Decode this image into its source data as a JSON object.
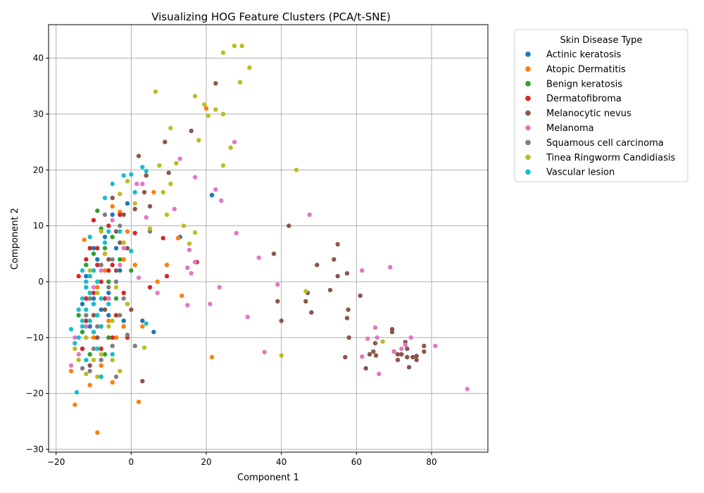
{
  "chart_data": {
    "type": "scatter",
    "title": "Visualizing HOG Feature Clusters (PCA/t-SNE)",
    "xlabel": "Component 1",
    "ylabel": "Component 2",
    "xlim": [
      -22,
      95
    ],
    "ylim": [
      -30.5,
      46
    ],
    "xticks": [
      -20,
      0,
      20,
      40,
      60,
      80
    ],
    "yticks": [
      -30,
      -20,
      -10,
      0,
      10,
      20,
      30,
      40
    ],
    "grid": true,
    "legend": {
      "title": "Skin Disease Type",
      "placement": "outside-right-top"
    },
    "series": [
      {
        "name": "Actinic keratosis",
        "color": "#1f77b4",
        "points": [
          [
            -12,
            1
          ],
          [
            -10,
            -3
          ],
          [
            -8,
            -5
          ],
          [
            -9,
            4
          ],
          [
            -6,
            -2
          ],
          [
            -7,
            8
          ],
          [
            -5,
            12
          ],
          [
            -3,
            2
          ],
          [
            -2,
            -7
          ],
          [
            -11,
            -8
          ],
          [
            -4,
            6
          ],
          [
            -13,
            -4
          ],
          [
            3,
            -7
          ],
          [
            6,
            -9
          ],
          [
            13,
            8
          ],
          [
            21.5,
            15.5
          ],
          [
            -1,
            14
          ],
          [
            -8,
            9
          ],
          [
            -10,
            6
          ],
          [
            -6,
            -6
          ]
        ]
      },
      {
        "name": "Atopic Dermatitis",
        "color": "#ff7f0e",
        "points": [
          [
            -12.5,
            7.5
          ],
          [
            -15,
            -22
          ],
          [
            -16,
            -16
          ],
          [
            -9,
            -27
          ],
          [
            -11,
            -18.5
          ],
          [
            -5,
            -18
          ],
          [
            2,
            -21.5
          ],
          [
            -8,
            -15
          ],
          [
            -2,
            -8
          ],
          [
            3,
            -8
          ],
          [
            1,
            3
          ],
          [
            7,
            0
          ],
          [
            9.5,
            3
          ],
          [
            13.5,
            -2.5
          ],
          [
            12.5,
            7.8
          ],
          [
            6,
            16
          ],
          [
            20,
            31
          ],
          [
            21.5,
            -13.5
          ],
          [
            -3,
            12.5
          ],
          [
            -5,
            13.5
          ],
          [
            -1,
            -4
          ],
          [
            -6,
            -7
          ],
          [
            -13,
            -12
          ],
          [
            -10,
            -10
          ],
          [
            -4,
            -10
          ],
          [
            -7,
            2
          ],
          [
            -9,
            -1
          ],
          [
            -12,
            -3
          ],
          [
            -2,
            4
          ],
          [
            -1,
            9
          ]
        ]
      },
      {
        "name": "Benign keratosis",
        "color": "#2ca02c",
        "points": [
          [
            -9,
            12.7
          ],
          [
            -8,
            9.5
          ],
          [
            -10,
            5
          ],
          [
            -12,
            3
          ],
          [
            -11,
            -2
          ],
          [
            -9,
            -6
          ],
          [
            -7,
            -13
          ],
          [
            -8,
            -17
          ],
          [
            -11,
            -13
          ],
          [
            -14,
            -6
          ],
          [
            -12,
            -1
          ],
          [
            -6,
            0
          ],
          [
            -3,
            4
          ],
          [
            0,
            2
          ],
          [
            -5,
            8
          ],
          [
            -7,
            6
          ],
          [
            -10,
            -4
          ],
          [
            -13,
            -9
          ],
          [
            -4,
            -3
          ],
          [
            -6,
            -10
          ]
        ]
      },
      {
        "name": "Dermatofibroma",
        "color": "#d62728",
        "points": [
          [
            -12,
            -3
          ],
          [
            -10,
            -2
          ],
          [
            -8,
            0
          ],
          [
            -11,
            1
          ],
          [
            -9,
            3
          ],
          [
            -7,
            5
          ],
          [
            -6,
            2
          ],
          [
            -12,
            -7
          ],
          [
            -10,
            -9
          ],
          [
            -13,
            -12
          ],
          [
            -14,
            1
          ],
          [
            -8,
            -12
          ],
          [
            -5,
            -10
          ],
          [
            -2,
            -2
          ],
          [
            1,
            8.7
          ],
          [
            5,
            -1
          ],
          [
            8.5,
            7.8
          ],
          [
            9.5,
            1
          ],
          [
            17.5,
            3.5
          ],
          [
            -9,
            6
          ],
          [
            -6,
            10
          ],
          [
            -11,
            6
          ],
          [
            -7,
            -3
          ],
          [
            -4,
            -6
          ],
          [
            -1,
            -10
          ],
          [
            -3,
            12
          ],
          [
            -10,
            11
          ],
          [
            -5,
            3
          ],
          [
            -8,
            -8
          ],
          [
            -12,
            4
          ]
        ]
      },
      {
        "name": "Melanocytic nevus",
        "color": "#8c564b",
        "points": [
          [
            -5,
            15
          ],
          [
            -4,
            9
          ],
          [
            -3,
            7
          ],
          [
            -2,
            12
          ],
          [
            1,
            13
          ],
          [
            4,
            19
          ],
          [
            5,
            13.5
          ],
          [
            3.5,
            16
          ],
          [
            9,
            25
          ],
          [
            10,
            19.5
          ],
          [
            2,
            22.5
          ],
          [
            16,
            27
          ],
          [
            22.5,
            35.5
          ],
          [
            3,
            -17.8
          ],
          [
            -7,
            -5
          ],
          [
            -9,
            -10
          ],
          [
            -6,
            4
          ],
          [
            -10,
            -6
          ],
          [
            38,
            5
          ],
          [
            39,
            -3.5
          ],
          [
            40,
            -7
          ],
          [
            42,
            10
          ],
          [
            46.5,
            -3.5
          ],
          [
            47,
            -2
          ],
          [
            48,
            -5.5
          ],
          [
            49.5,
            3
          ],
          [
            53,
            -1.5
          ],
          [
            54,
            4
          ],
          [
            55,
            6.7
          ],
          [
            55,
            1
          ],
          [
            57,
            -13.5
          ],
          [
            57.5,
            1.5
          ],
          [
            57.5,
            -6.5
          ],
          [
            57.8,
            -5
          ],
          [
            58,
            -10
          ],
          [
            61,
            -2.5
          ],
          [
            62.5,
            -15.5
          ],
          [
            63.5,
            -13
          ],
          [
            64.5,
            -12.5
          ],
          [
            65,
            -11
          ],
          [
            65.2,
            -13.2
          ],
          [
            69.5,
            -9
          ],
          [
            69.5,
            -8.5
          ],
          [
            70,
            -12.5
          ],
          [
            71,
            -14
          ],
          [
            71,
            -13
          ],
          [
            72,
            -13
          ],
          [
            73.5,
            -12
          ],
          [
            73,
            -10.8
          ],
          [
            73.5,
            -13.5
          ],
          [
            74,
            -15.3
          ],
          [
            75,
            -13.5
          ],
          [
            76,
            -13.3
          ],
          [
            76,
            -14
          ],
          [
            78,
            -11.5
          ],
          [
            78,
            -12.5
          ],
          [
            -1,
            6
          ],
          [
            -4,
            2
          ],
          [
            -11,
            -15
          ],
          [
            0,
            -5
          ]
        ]
      },
      {
        "name": "Melanoma",
        "color": "#e377c2",
        "points": [
          [
            -16,
            -15
          ],
          [
            -15,
            -10
          ],
          [
            -14,
            -13
          ],
          [
            -12,
            -8
          ],
          [
            -5,
            11
          ],
          [
            -2,
            6
          ],
          [
            -3,
            3
          ],
          [
            1.5,
            17.5
          ],
          [
            4,
            11.5
          ],
          [
            3,
            17.5
          ],
          [
            7,
            -2
          ],
          [
            2,
            0.7
          ],
          [
            11.5,
            13
          ],
          [
            13,
            22
          ],
          [
            15,
            2.5
          ],
          [
            15.5,
            5.7
          ],
          [
            16,
            1.5
          ],
          [
            15,
            -4.2
          ],
          [
            17,
            18.7
          ],
          [
            17,
            3.5
          ],
          [
            21,
            -4
          ],
          [
            22.5,
            16.5
          ],
          [
            23.5,
            -1
          ],
          [
            24,
            14.5
          ],
          [
            27.5,
            25
          ],
          [
            28,
            8.7
          ],
          [
            31,
            -6.3
          ],
          [
            34,
            4.3
          ],
          [
            35.5,
            -12.6
          ],
          [
            39,
            -0.5
          ],
          [
            47.5,
            12
          ],
          [
            61.5,
            2
          ],
          [
            61.5,
            -13.4
          ],
          [
            63,
            -10.2
          ],
          [
            65,
            -8.2
          ],
          [
            65.5,
            -10
          ],
          [
            66,
            -16.5
          ],
          [
            69,
            2.6
          ],
          [
            70,
            -12.5
          ],
          [
            72,
            -12
          ],
          [
            73,
            -11.3
          ],
          [
            74.5,
            -10
          ],
          [
            81,
            -11.5
          ],
          [
            89.5,
            -19.2
          ],
          [
            -8,
            2
          ],
          [
            -6,
            -3
          ],
          [
            -10,
            -1
          ]
        ]
      },
      {
        "name": "Squamous cell carcinoma",
        "color": "#7f7f7f",
        "points": [
          [
            -13,
            -15.5
          ],
          [
            -11,
            -16
          ],
          [
            -8,
            -14
          ],
          [
            -5,
            -11.5
          ],
          [
            -4,
            -17
          ],
          [
            -1,
            -9.5
          ],
          [
            1,
            -11.5
          ],
          [
            -3,
            -6
          ],
          [
            -6,
            -1
          ],
          [
            -9,
            -8
          ],
          [
            -10,
            -12
          ],
          [
            -12,
            -6
          ],
          [
            -5,
            4
          ],
          [
            -3,
            10
          ],
          [
            5,
            9
          ],
          [
            -7,
            12
          ],
          [
            -11,
            -3
          ],
          [
            -2,
            -3
          ],
          [
            -4,
            0
          ],
          [
            -8,
            3
          ]
        ]
      },
      {
        "name": "Tinea Ringworm Candidiasis",
        "color": "#bcbd22",
        "points": [
          [
            -15,
            -12
          ],
          [
            -14,
            -14
          ],
          [
            -12,
            -16.5
          ],
          [
            -10,
            -14
          ],
          [
            -8,
            -13
          ],
          [
            -5,
            -7
          ],
          [
            -3,
            -16
          ],
          [
            -1,
            -4
          ],
          [
            -3,
            15.7
          ],
          [
            -1,
            18
          ],
          [
            1,
            14
          ],
          [
            5,
            9.5
          ],
          [
            6.5,
            34
          ],
          [
            7.5,
            20.8
          ],
          [
            8.5,
            16
          ],
          [
            9.5,
            12
          ],
          [
            10.5,
            27.5
          ],
          [
            10.5,
            17.5
          ],
          [
            12,
            21.2
          ],
          [
            14,
            10
          ],
          [
            15.5,
            6.8
          ],
          [
            17,
            33.2
          ],
          [
            17,
            8.8
          ],
          [
            18,
            25.3
          ],
          [
            19.5,
            31.7
          ],
          [
            20.5,
            29.7
          ],
          [
            22.5,
            30.8
          ],
          [
            24.5,
            30
          ],
          [
            24.5,
            20.8
          ],
          [
            24.5,
            41
          ],
          [
            26.5,
            24
          ],
          [
            27.5,
            42.2
          ],
          [
            29,
            35.7
          ],
          [
            29.5,
            42.2
          ],
          [
            31.5,
            38.3
          ],
          [
            44,
            20
          ],
          [
            40,
            -13.2
          ],
          [
            46.5,
            -1.7
          ],
          [
            67,
            -10.7
          ],
          [
            3.5,
            -11.8
          ],
          [
            -6,
            -8
          ],
          [
            -9,
            -2
          ],
          [
            -11,
            2
          ],
          [
            -7,
            5
          ],
          [
            -4,
            -1
          ],
          [
            -2,
            7
          ],
          [
            -8,
            9
          ],
          [
            -12,
            -10
          ],
          [
            -5,
            -14
          ],
          [
            -9,
            -17
          ]
        ]
      },
      {
        "name": "Vascular lesion",
        "color": "#17becf",
        "points": [
          [
            -14.5,
            -19.8
          ],
          [
            -16,
            -8.5
          ],
          [
            -15,
            -11
          ],
          [
            -14,
            -5
          ],
          [
            -13,
            -3
          ],
          [
            -12,
            -1
          ],
          [
            -13,
            2
          ],
          [
            -12,
            0
          ],
          [
            -11,
            -2
          ],
          [
            -10,
            -4
          ],
          [
            -12,
            -5
          ],
          [
            -11,
            -7
          ],
          [
            -10,
            -9
          ],
          [
            -13,
            -8
          ],
          [
            -14,
            -10
          ],
          [
            -9,
            -6
          ],
          [
            -8,
            -3
          ],
          [
            -9,
            0
          ],
          [
            -10,
            2
          ],
          [
            -7,
            7
          ],
          [
            -8,
            -8
          ],
          [
            -6,
            -4
          ],
          [
            -7,
            15
          ],
          [
            -5,
            17.5
          ],
          [
            -2,
            19
          ],
          [
            0,
            19.2
          ],
          [
            1,
            16
          ],
          [
            3,
            20.5
          ],
          [
            4,
            19.8
          ],
          [
            4,
            -7.5
          ],
          [
            -5,
            -13
          ],
          [
            -8,
            -17
          ],
          [
            -11,
            8
          ],
          [
            -6,
            9
          ],
          [
            -9,
            -12
          ],
          [
            -12,
            -14
          ],
          [
            -3,
            9
          ],
          [
            0,
            5.5
          ],
          [
            -13,
            -7
          ],
          [
            -11,
            1
          ]
        ]
      }
    ]
  }
}
